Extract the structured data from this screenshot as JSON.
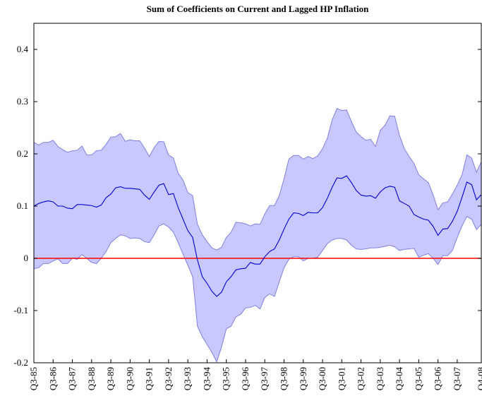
{
  "chart_data": {
    "type": "line",
    "title": "Sum of Coefficients on Current and Lagged HP Inflation",
    "categories": [
      "Q3-85",
      null,
      null,
      null,
      "Q3-86",
      null,
      null,
      null,
      "Q3-87",
      null,
      null,
      null,
      "Q3-88",
      null,
      null,
      null,
      "Q3-89",
      null,
      null,
      null,
      "Q3-90",
      null,
      null,
      null,
      "Q3-91",
      null,
      null,
      null,
      "Q3-92",
      null,
      null,
      null,
      "Q3-93",
      null,
      null,
      null,
      "Q3-94",
      null,
      null,
      null,
      "Q3-95",
      null,
      null,
      null,
      "Q3-96",
      null,
      null,
      null,
      "Q3-97",
      null,
      null,
      null,
      "Q3-98",
      null,
      null,
      null,
      "Q3-99",
      null,
      null,
      null,
      "Q3-00",
      null,
      null,
      null,
      "Q3-01",
      null,
      null,
      null,
      "Q3-02",
      null,
      null,
      null,
      "Q3-03",
      null,
      null,
      null,
      "Q3-04",
      null,
      null,
      null,
      "Q3-05",
      null,
      null,
      null,
      "Q3-06",
      null,
      null,
      null,
      "Q3-07",
      null,
      null,
      null,
      null,
      "Q4-08"
    ],
    "values": [
      0.1,
      0.105,
      0.108,
      0.11,
      0.108,
      0.1,
      0.1,
      0.096,
      0.095,
      0.103,
      0.103,
      0.102,
      0.101,
      0.098,
      0.102,
      0.116,
      0.123,
      0.135,
      0.137,
      0.134,
      0.134,
      0.133,
      0.132,
      0.121,
      0.113,
      0.127,
      0.14,
      0.143,
      0.122,
      0.124,
      0.097,
      0.075,
      0.053,
      0.04,
      -0.003,
      -0.035,
      -0.048,
      -0.063,
      -0.073,
      -0.065,
      -0.045,
      -0.035,
      -0.022,
      -0.02,
      -0.019,
      -0.008,
      -0.011,
      -0.011,
      0.003,
      0.013,
      0.018,
      0.035,
      0.056,
      0.075,
      0.087,
      0.086,
      0.082,
      0.088,
      0.087,
      0.087,
      0.097,
      0.115,
      0.136,
      0.154,
      0.153,
      0.158,
      0.145,
      0.13,
      0.121,
      0.119,
      0.12,
      0.115,
      0.127,
      0.135,
      0.138,
      0.136,
      0.11,
      0.105,
      0.1,
      0.084,
      0.079,
      0.075,
      0.073,
      0.061,
      0.044,
      0.056,
      0.057,
      0.071,
      0.09,
      0.117,
      0.146,
      0.141,
      0.112,
      0.122
    ],
    "color": "#0000cc",
    "band": {
      "color": "#c8c8ff",
      "edge_color": "#8080e0",
      "upper": [
        0.222,
        0.217,
        0.222,
        0.222,
        0.226,
        0.214,
        0.208,
        0.203,
        0.206,
        0.207,
        0.215,
        0.198,
        0.198,
        0.206,
        0.207,
        0.218,
        0.232,
        0.233,
        0.239,
        0.224,
        0.227,
        0.225,
        0.225,
        0.211,
        0.195,
        0.212,
        0.224,
        0.223,
        0.198,
        0.192,
        0.163,
        0.15,
        0.126,
        0.12,
        0.065,
        0.045,
        0.032,
        0.02,
        0.016,
        0.021,
        0.04,
        0.05,
        0.069,
        0.068,
        0.066,
        0.062,
        0.066,
        0.065,
        0.085,
        0.101,
        0.101,
        0.12,
        0.152,
        0.19,
        0.197,
        0.197,
        0.19,
        0.195,
        0.191,
        0.196,
        0.21,
        0.23,
        0.265,
        0.287,
        0.283,
        0.284,
        0.262,
        0.242,
        0.233,
        0.226,
        0.228,
        0.214,
        0.245,
        0.255,
        0.273,
        0.272,
        0.235,
        0.21,
        0.195,
        0.182,
        0.16,
        0.152,
        0.145,
        0.121,
        0.093,
        0.106,
        0.108,
        0.123,
        0.14,
        0.16,
        0.198,
        0.192,
        0.165,
        0.185
      ],
      "lower": [
        -0.02,
        -0.018,
        -0.01,
        -0.01,
        -0.005,
        -0.001,
        -0.01,
        -0.01,
        0.0,
        -0.002,
        0.007,
        0.0,
        -0.008,
        -0.01,
        0.0,
        0.013,
        0.03,
        0.038,
        0.045,
        0.043,
        0.038,
        0.039,
        0.038,
        0.032,
        0.03,
        0.045,
        0.062,
        0.066,
        0.06,
        0.05,
        0.03,
        0.008,
        -0.013,
        -0.035,
        -0.13,
        -0.15,
        -0.165,
        -0.18,
        -0.198,
        -0.17,
        -0.135,
        -0.13,
        -0.112,
        -0.107,
        -0.095,
        -0.094,
        -0.09,
        -0.097,
        -0.075,
        -0.068,
        -0.073,
        -0.045,
        -0.018,
        -0.002,
        0.003,
        0.003,
        -0.005,
        0.0,
        0.0,
        0.002,
        0.015,
        0.028,
        0.035,
        0.038,
        0.038,
        0.035,
        0.025,
        0.018,
        0.017,
        0.018,
        0.02,
        0.02,
        0.021,
        0.023,
        0.025,
        0.022,
        0.015,
        0.017,
        0.018,
        0.019,
        0.002,
        0.006,
        0.009,
        0.0,
        -0.012,
        0.005,
        0.005,
        0.015,
        0.04,
        0.062,
        0.08,
        0.075,
        0.055,
        0.065
      ]
    },
    "hline": {
      "value": 0,
      "color": "#ff0000"
    },
    "ylim": [
      -0.2,
      0.45
    ],
    "yticks": [
      -0.2,
      -0.1,
      0,
      0.1,
      0.2,
      0.3,
      0.4
    ]
  }
}
